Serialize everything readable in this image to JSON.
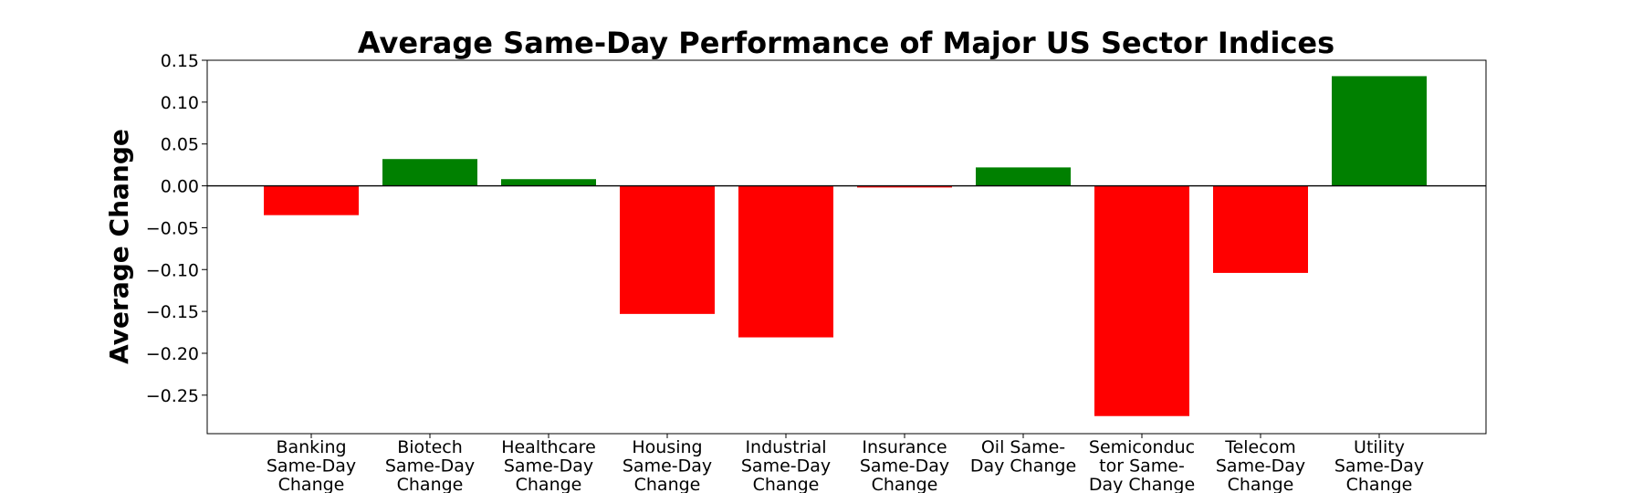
{
  "chart_data": {
    "type": "bar",
    "title": "Average Same-Day Performance of Major US Sector Indices",
    "xlabel": "",
    "ylabel": "Average Change",
    "ylim": [
      -0.296,
      0.15
    ],
    "yticks": [
      "0.15",
      "0.10",
      "0.05",
      "0.00",
      "−0.05",
      "−0.10",
      "−0.15",
      "−0.20",
      "−0.25"
    ],
    "ytick_values": [
      0.15,
      0.1,
      0.05,
      0.0,
      -0.05,
      -0.1,
      -0.15,
      -0.2,
      -0.25
    ],
    "categories": [
      [
        "Banking",
        "Same-Day",
        "Change"
      ],
      [
        "Biotech",
        "Same-Day",
        "Change"
      ],
      [
        "Healthcare",
        "Same-Day",
        "Change"
      ],
      [
        "Housing",
        "Same-Day",
        "Change"
      ],
      [
        "Industrial",
        "Same-Day",
        "Change"
      ],
      [
        "Insurance",
        "Same-Day",
        "Change"
      ],
      [
        "Oil Same-",
        "Day Change"
      ],
      [
        "Semiconduc",
        "tor Same-",
        "Day Change"
      ],
      [
        "Telecom",
        "Same-Day",
        "Change"
      ],
      [
        "Utility",
        "Same-Day",
        "Change"
      ]
    ],
    "values": [
      -0.035,
      0.032,
      0.008,
      -0.153,
      -0.181,
      -0.002,
      0.022,
      -0.275,
      -0.104,
      0.131
    ],
    "grid": false,
    "zero_line": true,
    "colors": {
      "positive": "#008000",
      "negative": "#ff0000",
      "axis": "#000000"
    }
  }
}
